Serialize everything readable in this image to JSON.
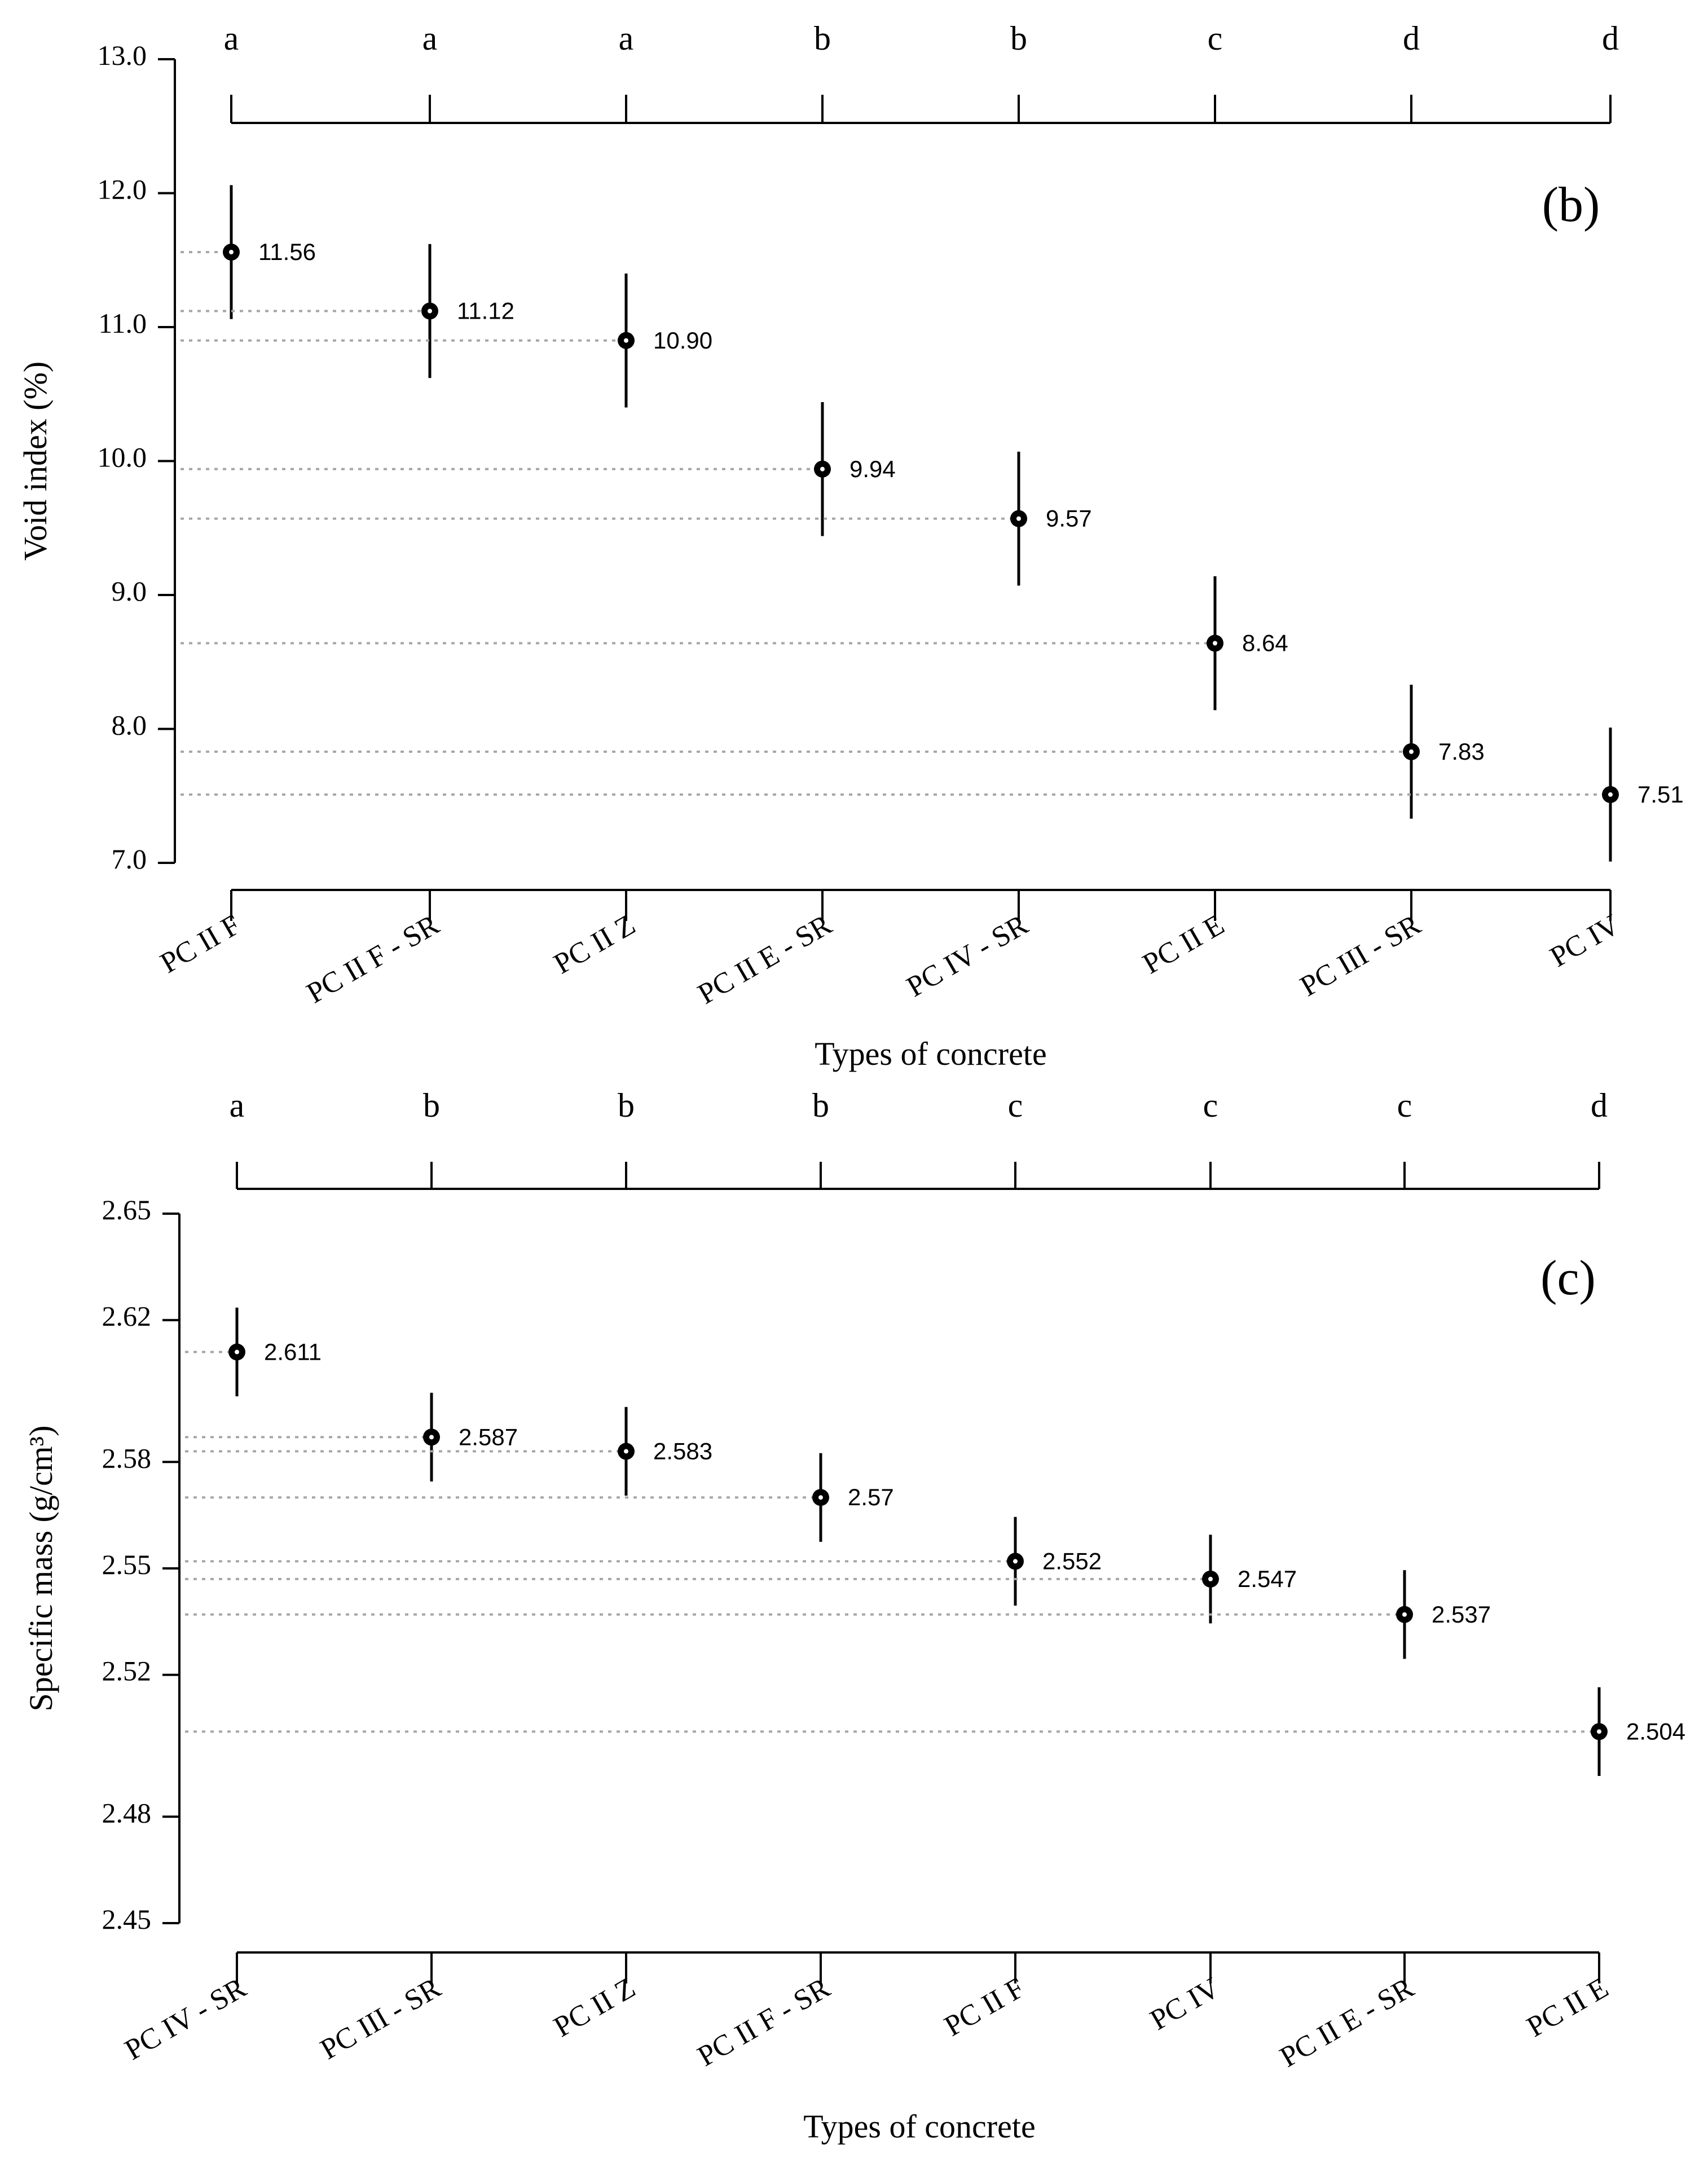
{
  "colors": {
    "marker": "#000000",
    "guide": "#a6a6a6",
    "background": "#ffffff"
  },
  "chart_data": [
    {
      "type": "scatter",
      "subtype": "point-with-error-bars",
      "panel_label": "(b)",
      "title": "",
      "xlabel": "Types of concrete",
      "ylabel": "Void index (%)",
      "ylim": [
        7.0,
        13.0
      ],
      "yticks": [
        7.0,
        8.0,
        9.0,
        10.0,
        11.0,
        12.0,
        13.0
      ],
      "ytick_labels": [
        "7.0",
        "8.0",
        "9.0",
        "10.0",
        "11.0",
        "12.0",
        "13.0"
      ],
      "categories": [
        "PC II F",
        "PC II F - SR",
        "PC II Z",
        "PC II E - SR",
        "PC IV - SR",
        "PC II E",
        "PC III - SR",
        "PC IV"
      ],
      "values": [
        11.56,
        11.12,
        10.9,
        9.94,
        9.57,
        8.64,
        7.83,
        7.51
      ],
      "value_labels": [
        "11.56",
        "11.12",
        "10.90",
        "9.94",
        "9.57",
        "8.64",
        "7.83",
        "7.51"
      ],
      "error_half_width": [
        0.5,
        0.5,
        0.5,
        0.5,
        0.5,
        0.5,
        0.5,
        0.5
      ],
      "group_letters": [
        "a",
        "a",
        "a",
        "b",
        "b",
        "c",
        "d",
        "d"
      ],
      "grid": false
    },
    {
      "type": "scatter",
      "subtype": "point-with-error-bars",
      "panel_label": "(c)",
      "title": "",
      "xlabel": "Types of concrete",
      "ylabel": "Specific mass (g/cm³)",
      "ylim": [
        2.45,
        2.65
      ],
      "yticks": [
        2.45,
        2.48,
        2.52,
        2.55,
        2.58,
        2.62,
        2.65
      ],
      "ytick_labels": [
        "2.45",
        "2.48",
        "2.52",
        "2.55",
        "2.58",
        "2.62",
        "2.65"
      ],
      "categories": [
        "PC IV - SR",
        "PC III - SR",
        "PC II Z",
        "PC II F - SR",
        "PC II F",
        "PC IV",
        "PC II E - SR",
        "PC II E"
      ],
      "values": [
        2.611,
        2.587,
        2.583,
        2.57,
        2.552,
        2.547,
        2.537,
        2.504
      ],
      "value_labels": [
        "2.611",
        "2.587",
        "2.583",
        "2.57",
        "2.552",
        "2.547",
        "2.537",
        "2.504"
      ],
      "error_half_width": [
        0.0125,
        0.0125,
        0.0125,
        0.0125,
        0.0125,
        0.0125,
        0.0125,
        0.0125
      ],
      "group_letters": [
        "a",
        "b",
        "b",
        "b",
        "c",
        "c",
        "c",
        "d"
      ],
      "grid": false
    }
  ]
}
